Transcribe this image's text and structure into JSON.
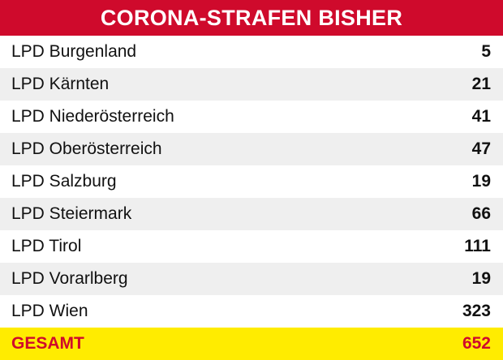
{
  "chart_data": {
    "type": "table",
    "title": "CORONA-STRAFEN BISHER",
    "columns": [
      "",
      ""
    ],
    "rows": [
      {
        "label": "LPD Burgenland",
        "value": 5
      },
      {
        "label": "LPD Kärnten",
        "value": 21
      },
      {
        "label": "LPD Niederösterreich",
        "value": 41
      },
      {
        "label": "LPD Oberösterreich",
        "value": 47
      },
      {
        "label": "LPD Salzburg",
        "value": 19
      },
      {
        "label": "LPD Steiermark",
        "value": 66
      },
      {
        "label": "LPD Tirol",
        "value": 111
      },
      {
        "label": "LPD Vorarlberg",
        "value": 19
      },
      {
        "label": "LPD Wien",
        "value": 323
      }
    ],
    "total": {
      "label": "GESAMT",
      "value": 652
    }
  },
  "colors": {
    "title_bg": "#cf0a2c",
    "title_text": "#ffffff",
    "row_alt_bg": "#efefef",
    "total_bg": "#ffec00",
    "total_text": "#cf0a2c"
  }
}
